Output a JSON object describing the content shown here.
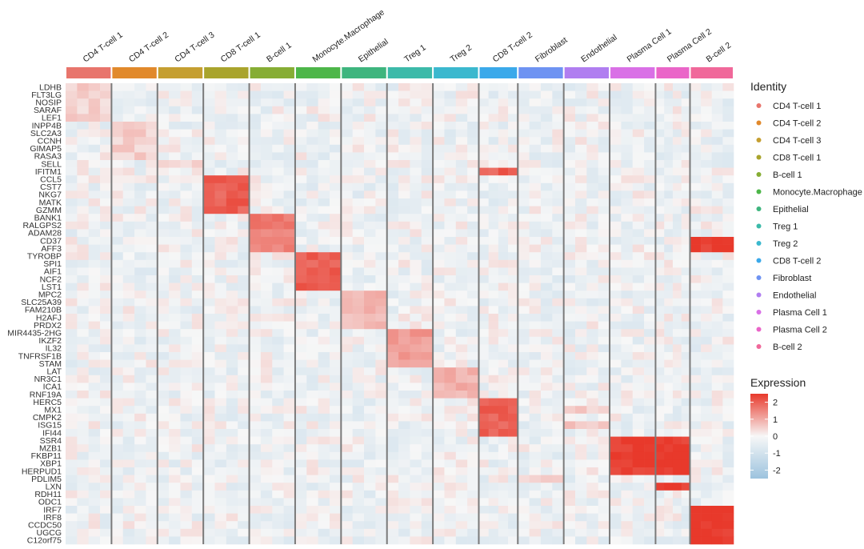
{
  "chart_data": {
    "type": "heatmap",
    "title": "",
    "xlabel": "",
    "ylabel": "",
    "clusters": [
      {
        "name": "CD4 T-cell 1",
        "color": "#E8756C"
      },
      {
        "name": "CD4 T-cell 2",
        "color": "#E1892B"
      },
      {
        "name": "CD4 T-cell 3",
        "color": "#C59F31"
      },
      {
        "name": "CD8 T-cell 1",
        "color": "#A9A42C"
      },
      {
        "name": "B-cell 1",
        "color": "#86AD34"
      },
      {
        "name": "Monocyte.Macrophage",
        "color": "#4DB649"
      },
      {
        "name": "Epithelial",
        "color": "#3EB57E"
      },
      {
        "name": "Treg 1",
        "color": "#3CBAA9"
      },
      {
        "name": "Treg 2",
        "color": "#3BB8CE"
      },
      {
        "name": "CD8 T-cell 2",
        "color": "#3BA9EA"
      },
      {
        "name": "Fibroblast",
        "color": "#6E93F2"
      },
      {
        "name": "Endothelial",
        "color": "#B07EF0"
      },
      {
        "name": "Plasma Cell 1",
        "color": "#D970E6"
      },
      {
        "name": "Plasma Cell 2",
        "color": "#EA65C8"
      },
      {
        "name": "B-cell 2",
        "color": "#F0689A"
      }
    ],
    "cluster_widths": [
      1.0,
      1.0,
      1.0,
      1.0,
      1.0,
      1.0,
      1.0,
      1.0,
      1.0,
      0.85,
      1.0,
      1.0,
      1.0,
      0.75,
      0.95
    ],
    "genes": [
      "LDHB",
      "FLT3LG",
      "NOSIP",
      "SARAF",
      "LEF1",
      "INPP4B",
      "SLC2A3",
      "CCNH",
      "GIMAP5",
      "RASA3",
      "SELL",
      "IFITM1",
      "CCL5",
      "CST7",
      "NKG7",
      "MATK",
      "GZMM",
      "BANK1",
      "RALGPS2",
      "ADAM28",
      "CD37",
      "AFF3",
      "TYROBP",
      "SPI1",
      "AIF1",
      "NCF2",
      "LST1",
      "MPC2",
      "SLC25A39",
      "FAM210B",
      "H2AFJ",
      "PRDX2",
      "MIR4435-2HG",
      "IKZF2",
      "IL32",
      "TNFRSF1B",
      "STAM",
      "LAT",
      "NR3C1",
      "ICA1",
      "RNF19A",
      "HERC5",
      "MX1",
      "CMPK2",
      "ISG15",
      "IFI44",
      "SSR4",
      "MZB1",
      "FKBP11",
      "XBP1",
      "HERPUD1",
      "PDLIM5",
      "LXN",
      "RDH11",
      "ODC1",
      "IRF7",
      "IRF8",
      "CCDC50",
      "UGCG",
      "C12orf75"
    ],
    "marker_blocks": [
      {
        "cluster": "CD4 T-cell 1",
        "genes": [
          "LDHB",
          "FLT3LG",
          "NOSIP",
          "SARAF",
          "LEF1"
        ],
        "level": 0.5
      },
      {
        "cluster": "CD4 T-cell 2",
        "genes": [
          "INPP4B",
          "SLC2A3",
          "CCNH",
          "GIMAP5",
          "RASA3"
        ],
        "level": 0.5
      },
      {
        "cluster": "CD4 T-cell 3",
        "genes": [
          "SELL"
        ],
        "level": 0.5
      },
      {
        "cluster": "CD8 T-cell 1",
        "genes": [
          "CCL5",
          "CST7",
          "NKG7",
          "MATK",
          "GZMM"
        ],
        "level": 2
      },
      {
        "cluster": "B-cell 1",
        "genes": [
          "BANK1",
          "RALGPS2",
          "ADAM28",
          "CD37",
          "AFF3"
        ],
        "level": 1.6
      },
      {
        "cluster": "Monocyte.Macrophage",
        "genes": [
          "TYROBP",
          "SPI1",
          "AIF1",
          "NCF2",
          "LST1"
        ],
        "level": 2
      },
      {
        "cluster": "Epithelial",
        "genes": [
          "MPC2",
          "SLC25A39",
          "FAM210B",
          "H2AFJ",
          "PRDX2"
        ],
        "level": 0.8
      },
      {
        "cluster": "Treg 1",
        "genes": [
          "MIR4435-2HG",
          "IKZF2",
          "IL32",
          "TNFRSF1B",
          "STAM"
        ],
        "level": 1.2
      },
      {
        "cluster": "Treg 2",
        "genes": [
          "LAT",
          "NR3C1",
          "ICA1",
          "RNF19A"
        ],
        "level": 0.9
      },
      {
        "cluster": "CD8 T-cell 2",
        "genes": [
          "IFITM1",
          "HERC5",
          "MX1",
          "CMPK2",
          "ISG15",
          "IFI44"
        ],
        "level": 2
      },
      {
        "cluster": "Fibroblast",
        "genes": [
          "PDLIM5"
        ],
        "level": 0.6
      },
      {
        "cluster": "Endothelial",
        "genes": [
          "MX1",
          "ISG15"
        ],
        "level": 0.6
      },
      {
        "cluster": "Plasma Cell 1",
        "genes": [
          "SSR4",
          "MZB1",
          "FKBP11",
          "XBP1",
          "HERPUD1"
        ],
        "level": 2.5
      },
      {
        "cluster": "Plasma Cell 2",
        "genes": [
          "SSR4",
          "MZB1",
          "FKBP11",
          "XBP1",
          "HERPUD1",
          "LXN"
        ],
        "level": 2.5
      },
      {
        "cluster": "B-cell 2",
        "genes": [
          "IRF7",
          "IRF8",
          "CCDC50",
          "UGCG",
          "C12orf75",
          "CD37",
          "AFF3"
        ],
        "level": 2.5
      }
    ],
    "color_scale": {
      "low": "#9CC3DE",
      "mid": "#F7F7F7",
      "high": "#E8392B",
      "min": -2.5,
      "max": 2.5
    },
    "identity_legend_title": "Identity",
    "expression_legend_title": "Expression",
    "expression_ticks": [
      "2",
      "1",
      "0",
      "-1",
      "-2"
    ],
    "expression_tick_values": [
      2,
      1,
      0,
      -1,
      -2
    ]
  }
}
